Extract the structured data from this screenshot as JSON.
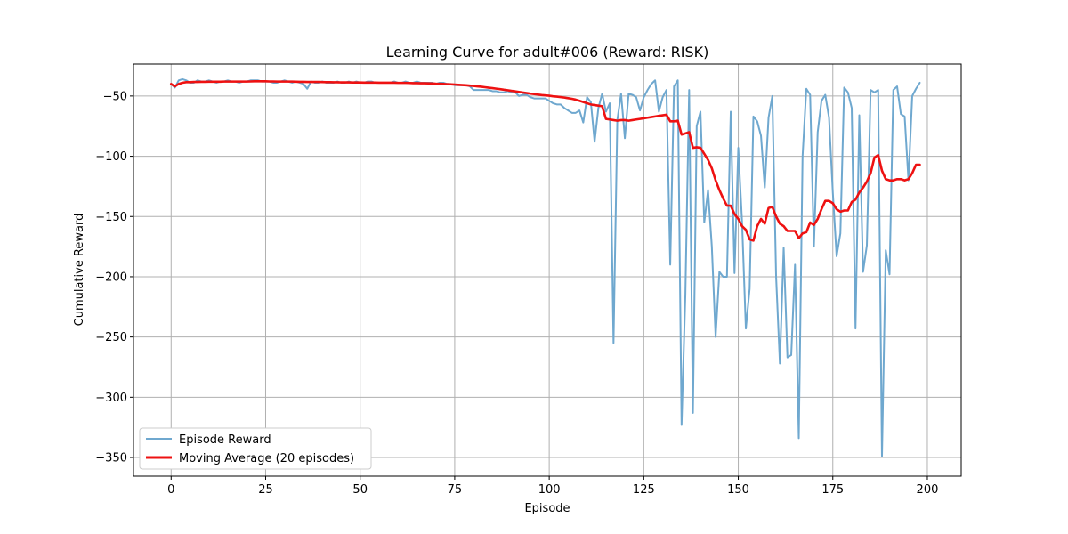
{
  "chart_data": {
    "type": "line",
    "title": "Learning Curve for adult#006 (Reward: RISK)",
    "xlabel": "Episode",
    "ylabel": "Cumulative Reward",
    "xlim": [
      -9.95,
      208.95
    ],
    "ylim": [
      -365.5,
      -23.5
    ],
    "xticks": [
      0,
      25,
      50,
      75,
      100,
      125,
      150,
      175,
      200
    ],
    "yticks": [
      -350,
      -300,
      -250,
      -200,
      -150,
      -100,
      -50
    ],
    "xtick_labels": [
      "0",
      "25",
      "50",
      "75",
      "100",
      "125",
      "150",
      "175",
      "200"
    ],
    "ytick_labels": [
      "−350",
      "−300",
      "−250",
      "−200",
      "−150",
      "−100",
      "−50"
    ],
    "grid": true,
    "legend_position": "lower-left",
    "series": [
      {
        "name": "Episode Reward",
        "color": "#6fa8cf",
        "values": [
          -40,
          -43,
          -37,
          -36,
          -37,
          -39,
          -39,
          -37,
          -38,
          -38,
          -37,
          -38,
          -39,
          -38,
          -38,
          -37,
          -38,
          -38,
          -39,
          -38,
          -38,
          -37,
          -37,
          -37,
          -38,
          -38,
          -38,
          -39,
          -39,
          -38,
          -37,
          -38,
          -39,
          -38,
          -39,
          -40,
          -44,
          -38,
          -39,
          -39,
          -38,
          -39,
          -39,
          -39,
          -38,
          -39,
          -39,
          -38,
          -39,
          -38,
          -39,
          -39,
          -38,
          -38,
          -39,
          -39,
          -39,
          -39,
          -39,
          -38,
          -39,
          -39,
          -38,
          -39,
          -39,
          -38,
          -39,
          -39,
          -39,
          -39,
          -40,
          -39,
          -39,
          -40,
          -40,
          -41,
          -41,
          -41,
          -41,
          -42,
          -45,
          -45,
          -45,
          -45,
          -45,
          -46,
          -46,
          -47,
          -47,
          -46,
          -47,
          -47,
          -50,
          -49,
          -49,
          -51,
          -52,
          -52,
          -52,
          -52,
          -54,
          -56,
          -57,
          -57,
          -60,
          -62,
          -64,
          -64,
          -62,
          -72,
          -51,
          -55,
          -88,
          -60,
          -48,
          -63,
          -56,
          -255,
          -70,
          -48,
          -85,
          -48,
          -49,
          -51,
          -62,
          -51,
          -45,
          -40,
          -37,
          -63,
          -51,
          -45,
          -190,
          -42,
          -37,
          -323,
          -215,
          -45,
          -313,
          -75,
          -63,
          -155,
          -128,
          -175,
          -250,
          -196,
          -200,
          -200,
          -63,
          -197,
          -93,
          -155,
          -243,
          -210,
          -67,
          -71,
          -83,
          -126,
          -68,
          -50,
          -200,
          -272,
          -176,
          -267,
          -265,
          -190,
          -334,
          -100,
          -44,
          -49,
          -175,
          -80,
          -54,
          -49,
          -68,
          -130,
          -183,
          -164,
          -43,
          -47,
          -60,
          -243,
          -66,
          -196,
          -174,
          -45,
          -47,
          -45,
          -349,
          -178,
          -198,
          -45,
          -42,
          -65,
          -67,
          -120,
          -50,
          -44,
          -39
        ]
      },
      {
        "name": "Moving Average (20 episodes)",
        "color": "#ee1111",
        "values": [
          -40,
          -42,
          -40,
          -39,
          -38.5,
          -38.5,
          -38.3,
          -38.3,
          -38.2,
          -38.2,
          -38.1,
          -38.1,
          -38.1,
          -38.1,
          -38.0,
          -38.0,
          -38.0,
          -38.0,
          -38.0,
          -38.0,
          -38.0,
          -37.9,
          -37.8,
          -37.8,
          -37.8,
          -37.8,
          -37.9,
          -37.9,
          -38.0,
          -38.0,
          -38.0,
          -38.0,
          -38.0,
          -38.1,
          -38.2,
          -38.2,
          -38.3,
          -38.3,
          -38.3,
          -38.3,
          -38.4,
          -38.5,
          -38.5,
          -38.6,
          -38.6,
          -38.7,
          -38.7,
          -38.7,
          -38.8,
          -38.8,
          -38.8,
          -38.9,
          -38.9,
          -38.9,
          -38.9,
          -39.0,
          -39.0,
          -39.0,
          -39.0,
          -39.0,
          -39.1,
          -39.1,
          -39.1,
          -39.2,
          -39.3,
          -39.3,
          -39.4,
          -39.4,
          -39.5,
          -39.6,
          -39.8,
          -39.9,
          -40.0,
          -40.2,
          -40.3,
          -40.5,
          -40.7,
          -40.9,
          -41.1,
          -41.4,
          -41.7,
          -42.0,
          -42.3,
          -42.7,
          -43.1,
          -43.5,
          -43.9,
          -44.3,
          -44.8,
          -45.2,
          -45.7,
          -46.1,
          -46.6,
          -47.1,
          -47.5,
          -48.0,
          -48.4,
          -48.8,
          -49.2,
          -49.5,
          -49.8,
          -50.2,
          -50.5,
          -50.9,
          -51.3,
          -51.8,
          -52.3,
          -53.0,
          -54.0,
          -55.0,
          -56.0,
          -57.0,
          -57.5,
          -58.0,
          -58.5,
          -69.0,
          -69.5,
          -70.0,
          -70.5,
          -70.0,
          -70.0,
          -70.5,
          -70.0,
          -69.5,
          -69.0,
          -68.5,
          -68.0,
          -67.5,
          -67.0,
          -66.5,
          -66.0,
          -65.5,
          -71.0,
          -71.0,
          -70.5,
          -82.0,
          -81.0,
          -80.0,
          -93.0,
          -92.5,
          -93.0,
          -98.0,
          -103.0,
          -110.0,
          -120.0,
          -128.0,
          -135.0,
          -141.0,
          -141.0,
          -148.0,
          -152.0,
          -158.0,
          -161.0,
          -169.0,
          -170.0,
          -158.0,
          -152.0,
          -156.0,
          -143.0,
          -142.0,
          -150.0,
          -156.0,
          -158.0,
          -162.0,
          -162.0,
          -162.0,
          -168.0,
          -164.0,
          -163.0,
          -155.0,
          -157.0,
          -152.0,
          -144.0,
          -137.0,
          -137.0,
          -139.0,
          -144.0,
          -146.0,
          -145.0,
          -145.0,
          -138.0,
          -136.0,
          -130.0,
          -126.0,
          -121.0,
          -114.0,
          -101.0,
          -99.0,
          -112.0,
          -119.0,
          -120.0,
          -120.0,
          -119.0,
          -119.0,
          -120.0,
          -119.0,
          -114.0,
          -107.0,
          -107.0
        ]
      }
    ]
  }
}
